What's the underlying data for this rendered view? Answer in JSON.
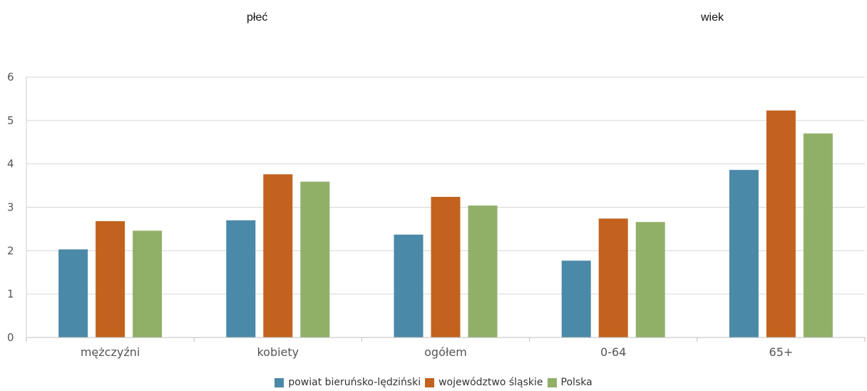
{
  "group_labels": [
    "płeć",
    "wiek"
  ],
  "chart_data": {
    "type": "bar",
    "categories": [
      "mężczyźni",
      "kobiety",
      "ogółem",
      "0-64",
      "65+"
    ],
    "series": [
      {
        "name": "powiat bieruńsko-lędziński",
        "color": "#4a89a8",
        "values": [
          2.03,
          2.7,
          2.37,
          1.77,
          3.86
        ]
      },
      {
        "name": "województwo śląskie",
        "color": "#c2621e",
        "values": [
          2.68,
          3.76,
          3.24,
          2.74,
          5.23
        ]
      },
      {
        "name": "Polska",
        "color": "#90b068",
        "values": [
          2.46,
          3.59,
          3.04,
          2.66,
          4.7
        ]
      }
    ],
    "ylim": [
      0,
      6
    ],
    "yticks": [
      0,
      1,
      2,
      3,
      4,
      5,
      6
    ],
    "grid": true,
    "legend_position": "bottom"
  }
}
